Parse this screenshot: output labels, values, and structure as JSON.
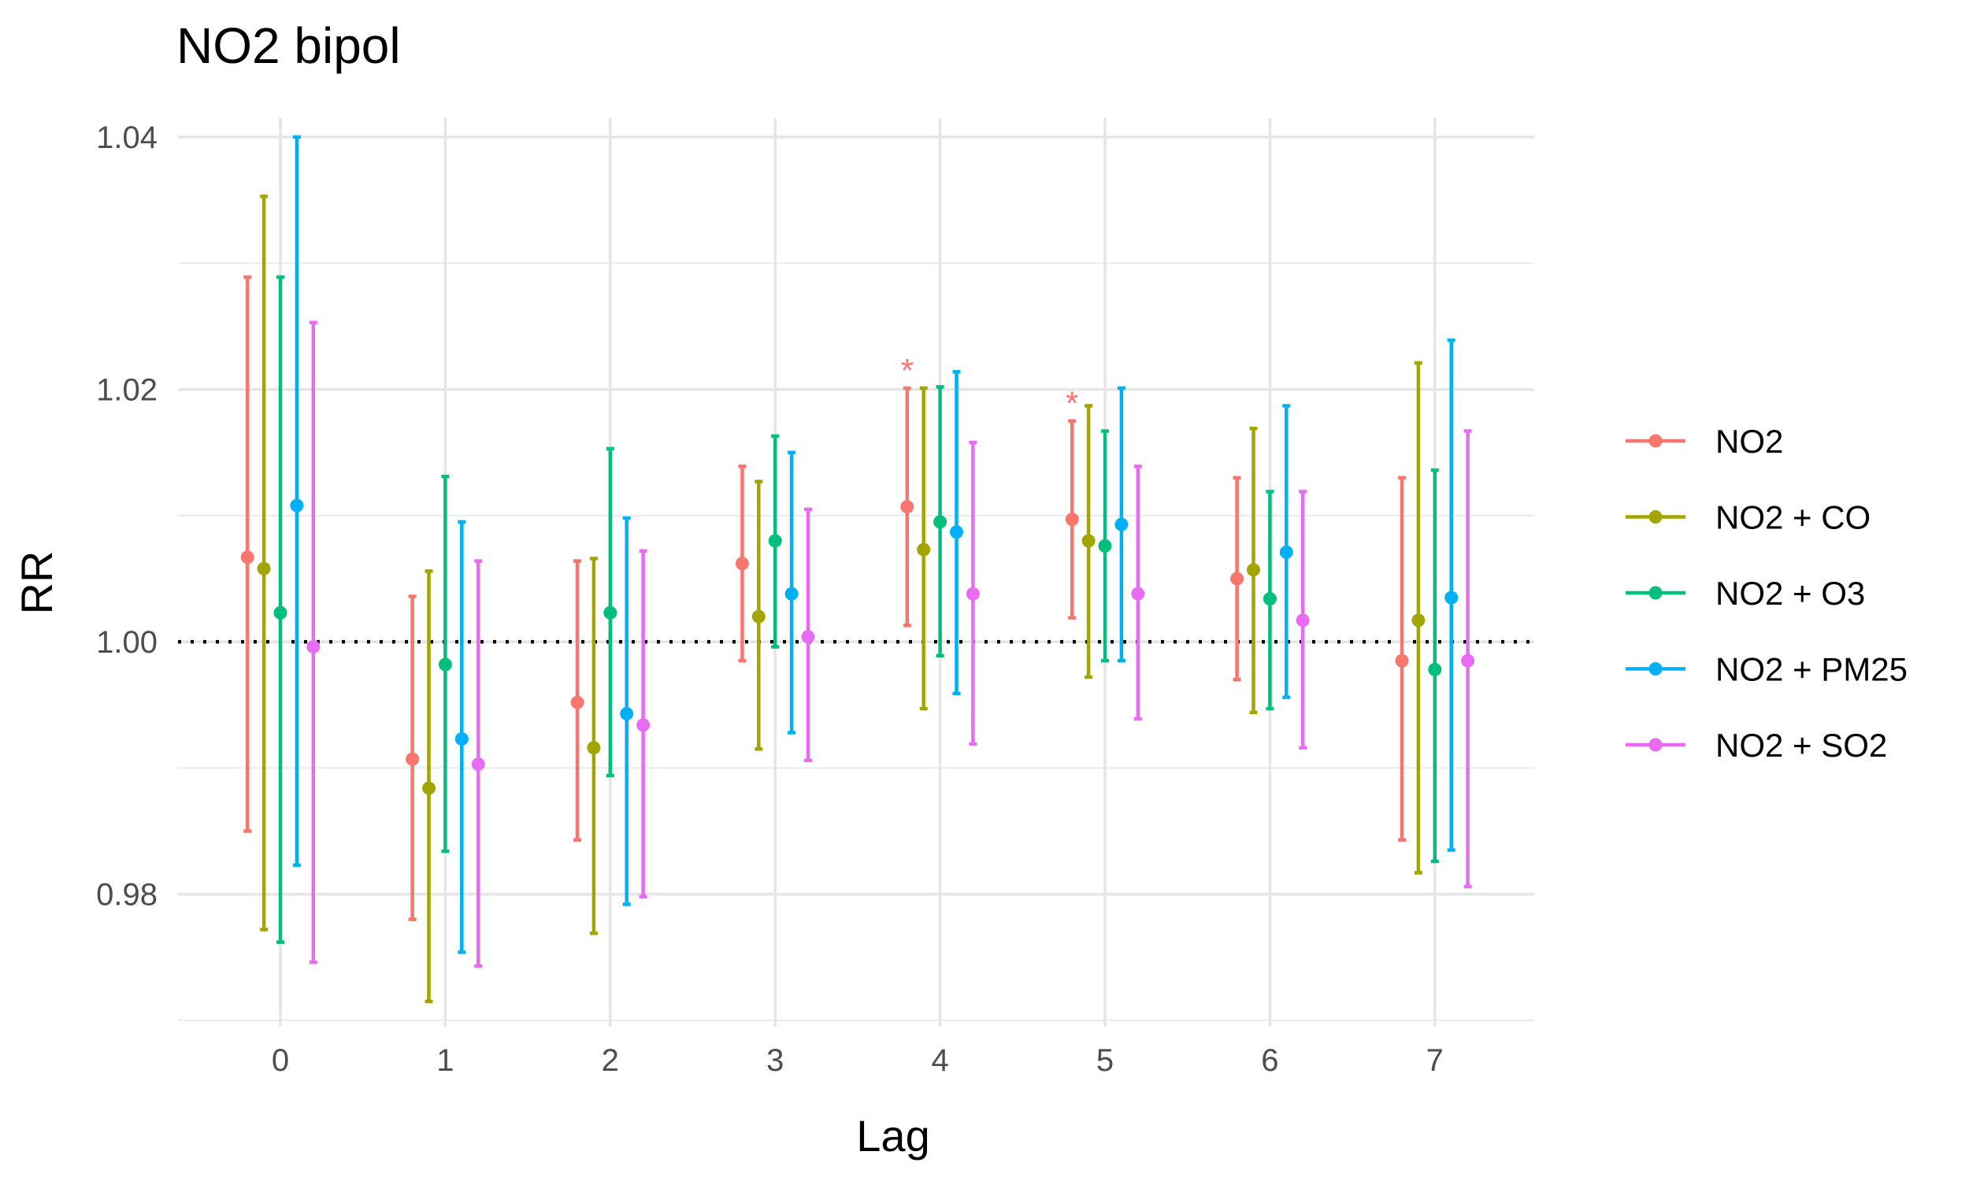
{
  "chart_data": {
    "type": "errorbar",
    "title": "NO2 bipol",
    "xlabel": "Lag",
    "ylabel": "RR",
    "categories": [
      "0",
      "1",
      "2",
      "3",
      "4",
      "5",
      "6",
      "7"
    ],
    "y_ticks": [
      "0.98",
      "1.00",
      "1.02",
      "1.04"
    ],
    "ylim": [
      0.9695,
      1.0415
    ],
    "reference_line": 1.0,
    "grid": true,
    "legend_position": "right",
    "series": [
      {
        "name": "NO2",
        "color": "#F8766D",
        "values": [
          1.0067,
          0.9907,
          0.9952,
          1.0062,
          1.0107,
          1.0097,
          1.005,
          0.9985
        ],
        "lower": [
          0.985,
          0.978,
          0.9843,
          0.9985,
          1.0013,
          1.0019,
          0.997,
          0.9843
        ],
        "upper": [
          1.0289,
          1.0036,
          1.0064,
          1.0139,
          1.0201,
          1.0175,
          1.013,
          1.013
        ]
      },
      {
        "name": "NO2 + CO",
        "color": "#A3A500",
        "values": [
          1.0058,
          0.9884,
          0.9916,
          1.002,
          1.0073,
          1.008,
          1.0057,
          1.0017
        ],
        "lower": [
          0.9772,
          0.9715,
          0.9769,
          0.9915,
          0.9947,
          0.9972,
          0.9944,
          0.9817
        ],
        "upper": [
          1.0353,
          1.0056,
          1.0066,
          1.0127,
          1.0201,
          1.0187,
          1.0169,
          1.0221
        ]
      },
      {
        "name": "NO2 + O3",
        "color": "#00BF7D",
        "values": [
          1.0023,
          0.9982,
          1.0023,
          1.008,
          1.0095,
          1.0076,
          1.0034,
          0.9978
        ],
        "lower": [
          0.9762,
          0.9834,
          0.9894,
          0.9996,
          0.9989,
          0.9985,
          0.9947,
          0.9826
        ],
        "upper": [
          1.0289,
          1.0131,
          1.0153,
          1.0163,
          1.0202,
          1.0167,
          1.0119,
          1.0136
        ]
      },
      {
        "name": "NO2 + PM25",
        "color": "#00B0F6",
        "values": [
          1.0108,
          0.9923,
          0.9943,
          1.0038,
          1.0087,
          1.0093,
          1.0071,
          1.0035
        ],
        "lower": [
          0.9823,
          0.9754,
          0.9792,
          0.9928,
          0.9959,
          0.9985,
          0.9956,
          0.9835
        ],
        "upper": [
          1.04,
          1.0095,
          1.0098,
          1.015,
          1.0214,
          1.0201,
          1.0187,
          1.0239
        ]
      },
      {
        "name": "NO2 + SO2",
        "color": "#E76BF3",
        "values": [
          0.9996,
          0.9903,
          0.9934,
          1.0004,
          1.0038,
          1.0038,
          1.0017,
          0.9985
        ],
        "lower": [
          0.9746,
          0.9743,
          0.9798,
          0.9906,
          0.9919,
          0.9939,
          0.9916,
          0.9806
        ],
        "upper": [
          1.0253,
          1.0064,
          1.0072,
          1.0105,
          1.0158,
          1.0139,
          1.0119,
          1.0167
        ]
      }
    ],
    "annotations": [
      {
        "text": "*",
        "category": "4",
        "series": "NO2"
      },
      {
        "text": "*",
        "category": "5",
        "series": "NO2"
      }
    ]
  }
}
